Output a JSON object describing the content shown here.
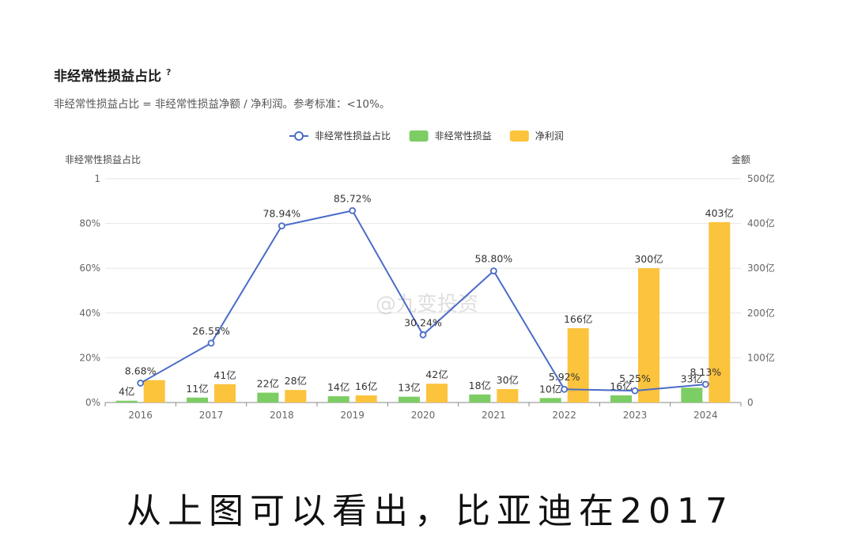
{
  "header": {
    "title": "非经常性损益占比",
    "help_mark": "?",
    "subtitle": "非经常性损益占比 = 非经常性损益净额 / 净利润。参考标准：<10%。"
  },
  "watermark": "@九变投资",
  "caption": "从上图可以看出，比亚迪在2017",
  "chart_data": {
    "type": "bar+line",
    "categories": [
      "2016",
      "2017",
      "2018",
      "2019",
      "2020",
      "2021",
      "2022",
      "2023",
      "2024"
    ],
    "y_left": {
      "label": "非经常性损益占比",
      "range": [
        0,
        1
      ],
      "ticks": [
        "0%",
        "20%",
        "40%",
        "60%",
        "80%",
        "1"
      ]
    },
    "y_right": {
      "label": "金额",
      "range": [
        0,
        500
      ],
      "ticks": [
        "0",
        "100亿",
        "200亿",
        "300亿",
        "400亿",
        "500亿"
      ]
    },
    "legend_position": "top-center",
    "grid": true,
    "series": [
      {
        "name": "非经常性损益占比",
        "kind": "line",
        "axis": "left",
        "color": "#4a6bc8",
        "values": [
          0.0868,
          0.2655,
          0.7894,
          0.8572,
          0.3024,
          0.588,
          0.0592,
          0.0525,
          0.0813
        ],
        "labels": [
          "8.68%",
          "26.55%",
          "78.94%",
          "85.72%",
          "30.24%",
          "58.80%",
          "5.92%",
          "5.25%",
          "8.13%"
        ]
      },
      {
        "name": "非经常性损益",
        "kind": "bar",
        "axis": "right",
        "color": "#7ccd63",
        "values": [
          4,
          11,
          22,
          14,
          13,
          18,
          10,
          16,
          33
        ],
        "labels": [
          "4亿",
          "11亿",
          "22亿",
          "14亿",
          "13亿",
          "18亿",
          "10亿",
          "16亿",
          "33亿"
        ]
      },
      {
        "name": "净利润",
        "kind": "bar",
        "axis": "right",
        "color": "#fcc33c",
        "values": [
          50,
          41,
          28,
          16,
          42,
          30,
          166,
          300,
          403
        ],
        "labels": [
          "",
          "41亿",
          "28亿",
          "16亿",
          "42亿",
          "30亿",
          "166亿",
          "300亿",
          "403亿"
        ]
      }
    ]
  }
}
